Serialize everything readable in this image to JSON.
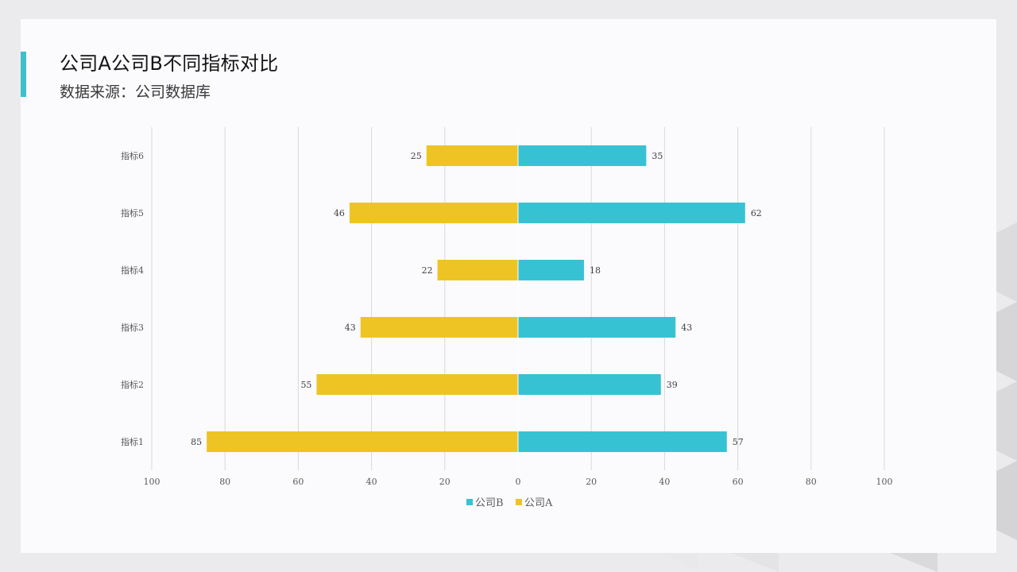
{
  "slide": {
    "title": "公司A公司B不同指标对比",
    "subtitle": "数据来源：公司数据库"
  },
  "colors": {
    "accent": "#3dbfcc",
    "company_a": "#eec425",
    "company_b": "#37c2d4",
    "gridline": "#d9d9d9"
  },
  "chart_data": {
    "type": "bar",
    "orientation": "horizontal-diverging",
    "categories": [
      "指标1",
      "指标2",
      "指标3",
      "指标4",
      "指标5",
      "指标6"
    ],
    "series": [
      {
        "name": "公司B",
        "side": "right",
        "color": "#37c2d4",
        "values": [
          57,
          39,
          43,
          18,
          62,
          35
        ]
      },
      {
        "name": "公司A",
        "side": "left",
        "color": "#eec425",
        "values": [
          85,
          55,
          43,
          22,
          46,
          25
        ]
      }
    ],
    "x_ticks": [
      "100",
      "80",
      "60",
      "40",
      "20",
      "0",
      "20",
      "40",
      "60",
      "80",
      "100"
    ],
    "xlim": [
      -100,
      100
    ],
    "grid": true,
    "legend_position": "bottom",
    "data_labels": true
  }
}
